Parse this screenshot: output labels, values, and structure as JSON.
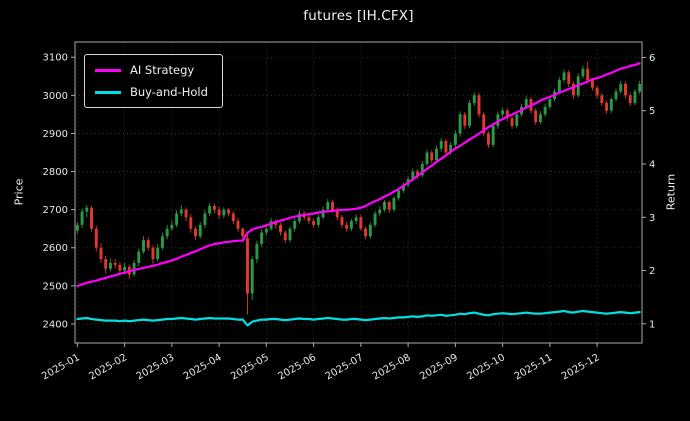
{
  "chart_data": {
    "type": "candlestick+line",
    "title": "futures [IH.CFX]",
    "ylabel_left": "Price",
    "ylabel_right": "Return",
    "background": "#000000",
    "grid": true,
    "legend_position": "upper-left",
    "colors": {
      "up": "#2b9a44",
      "down": "#e03a2e",
      "grid": "#3a3a3a",
      "spine": "#aaaaaa",
      "text": "#e8e8e8",
      "title": "#f2f2f2"
    },
    "price_axis": {
      "min": 2350,
      "max": 3140,
      "ticks": [
        2400,
        2500,
        2600,
        2700,
        2800,
        2900,
        3000,
        3100
      ]
    },
    "return_axis": {
      "min": 0.64,
      "max": 6.29,
      "ticks": [
        1,
        2,
        3,
        4,
        5,
        6
      ]
    },
    "x_ticks": [
      {
        "label": "2025-01",
        "i": 0
      },
      {
        "label": "2025-02",
        "i": 10
      },
      {
        "label": "2025-03",
        "i": 20
      },
      {
        "label": "2025-04",
        "i": 30
      },
      {
        "label": "2025-05",
        "i": 40
      },
      {
        "label": "2025-06",
        "i": 50
      },
      {
        "label": "2025-07",
        "i": 60
      },
      {
        "label": "2025-08",
        "i": 70
      },
      {
        "label": "2025-09",
        "i": 80
      },
      {
        "label": "2025-10",
        "i": 90
      },
      {
        "label": "2025-11",
        "i": 100
      },
      {
        "label": "2025-12",
        "i": 110
      }
    ],
    "legend": [
      {
        "name": "AI Strategy",
        "color": "#ff00ff"
      },
      {
        "name": "Buy-and-Hold",
        "color": "#00e0e0"
      }
    ],
    "candles": [
      [
        2645,
        2668,
        2638,
        2660
      ],
      [
        2660,
        2703,
        2652,
        2695
      ],
      [
        2695,
        2712,
        2680,
        2705
      ],
      [
        2705,
        2710,
        2642,
        2650
      ],
      [
        2650,
        2658,
        2590,
        2600
      ],
      [
        2600,
        2612,
        2560,
        2570
      ],
      [
        2570,
        2578,
        2532,
        2545
      ],
      [
        2545,
        2572,
        2538,
        2560
      ],
      [
        2560,
        2570,
        2545,
        2555
      ],
      [
        2555,
        2562,
        2528,
        2540
      ],
      [
        2540,
        2560,
        2530,
        2550
      ],
      [
        2550,
        2556,
        2518,
        2530
      ],
      [
        2530,
        2568,
        2524,
        2560
      ],
      [
        2560,
        2598,
        2552,
        2590
      ],
      [
        2590,
        2630,
        2584,
        2620
      ],
      [
        2620,
        2628,
        2592,
        2600
      ],
      [
        2600,
        2606,
        2558,
        2570
      ],
      [
        2570,
        2610,
        2564,
        2600
      ],
      [
        2600,
        2640,
        2594,
        2630
      ],
      [
        2630,
        2660,
        2622,
        2650
      ],
      [
        2650,
        2672,
        2644,
        2660
      ],
      [
        2660,
        2698,
        2654,
        2690
      ],
      [
        2690,
        2712,
        2682,
        2700
      ],
      [
        2700,
        2706,
        2670,
        2680
      ],
      [
        2680,
        2688,
        2640,
        2650
      ],
      [
        2650,
        2656,
        2620,
        2630
      ],
      [
        2630,
        2668,
        2624,
        2660
      ],
      [
        2660,
        2700,
        2652,
        2690
      ],
      [
        2690,
        2718,
        2684,
        2710
      ],
      [
        2710,
        2716,
        2690,
        2700
      ],
      [
        2700,
        2708,
        2676,
        2685
      ],
      [
        2685,
        2706,
        2678,
        2700
      ],
      [
        2700,
        2704,
        2682,
        2690
      ],
      [
        2690,
        2696,
        2662,
        2670
      ],
      [
        2670,
        2678,
        2642,
        2650
      ],
      [
        2650,
        2654,
        2622,
        2630
      ],
      [
        2625,
        2635,
        2425,
        2480
      ],
      [
        2480,
        2578,
        2462,
        2570
      ],
      [
        2570,
        2618,
        2560,
        2610
      ],
      [
        2610,
        2648,
        2602,
        2640
      ],
      [
        2640,
        2658,
        2632,
        2650
      ],
      [
        2650,
        2678,
        2644,
        2670
      ],
      [
        2670,
        2676,
        2650,
        2660
      ],
      [
        2660,
        2666,
        2632,
        2640
      ],
      [
        2640,
        2646,
        2612,
        2620
      ],
      [
        2620,
        2656,
        2614,
        2650
      ],
      [
        2650,
        2678,
        2642,
        2670
      ],
      [
        2670,
        2698,
        2664,
        2690
      ],
      [
        2690,
        2696,
        2672,
        2680
      ],
      [
        2680,
        2686,
        2662,
        2670
      ],
      [
        2670,
        2676,
        2652,
        2660
      ],
      [
        2660,
        2688,
        2654,
        2680
      ],
      [
        2680,
        2708,
        2674,
        2700
      ],
      [
        2700,
        2728,
        2694,
        2720
      ],
      [
        2720,
        2726,
        2692,
        2700
      ],
      [
        2700,
        2706,
        2672,
        2680
      ],
      [
        2680,
        2686,
        2652,
        2660
      ],
      [
        2660,
        2668,
        2642,
        2650
      ],
      [
        2650,
        2676,
        2644,
        2670
      ],
      [
        2670,
        2688,
        2662,
        2680
      ],
      [
        2680,
        2686,
        2644,
        2650
      ],
      [
        2650,
        2656,
        2622,
        2630
      ],
      [
        2630,
        2666,
        2624,
        2660
      ],
      [
        2660,
        2696,
        2654,
        2690
      ],
      [
        2690,
        2708,
        2682,
        2700
      ],
      [
        2700,
        2726,
        2694,
        2720
      ],
      [
        2720,
        2724,
        2692,
        2700
      ],
      [
        2700,
        2736,
        2694,
        2730
      ],
      [
        2730,
        2758,
        2724,
        2750
      ],
      [
        2750,
        2772,
        2744,
        2765
      ],
      [
        2765,
        2788,
        2758,
        2780
      ],
      [
        2780,
        2808,
        2774,
        2800
      ],
      [
        2800,
        2806,
        2782,
        2790
      ],
      [
        2790,
        2828,
        2784,
        2820
      ],
      [
        2820,
        2858,
        2814,
        2850
      ],
      [
        2850,
        2856,
        2822,
        2830
      ],
      [
        2830,
        2868,
        2824,
        2860
      ],
      [
        2860,
        2888,
        2852,
        2880
      ],
      [
        2880,
        2886,
        2842,
        2850
      ],
      [
        2850,
        2878,
        2844,
        2870
      ],
      [
        2870,
        2908,
        2862,
        2900
      ],
      [
        2900,
        2958,
        2892,
        2950
      ],
      [
        2950,
        2956,
        2912,
        2920
      ],
      [
        2920,
        2988,
        2914,
        2980
      ],
      [
        2980,
        3008,
        2972,
        3000
      ],
      [
        3000,
        3006,
        2942,
        2950
      ],
      [
        2950,
        2956,
        2892,
        2900
      ],
      [
        2900,
        2906,
        2862,
        2870
      ],
      [
        2870,
        2928,
        2864,
        2920
      ],
      [
        2920,
        2958,
        2912,
        2950
      ],
      [
        2950,
        2968,
        2942,
        2960
      ],
      [
        2960,
        2966,
        2932,
        2940
      ],
      [
        2940,
        2946,
        2912,
        2920
      ],
      [
        2920,
        2958,
        2914,
        2950
      ],
      [
        2950,
        2978,
        2944,
        2970
      ],
      [
        2970,
        2998,
        2964,
        2990
      ],
      [
        2990,
        2996,
        2952,
        2960
      ],
      [
        2960,
        2966,
        2922,
        2930
      ],
      [
        2930,
        2958,
        2924,
        2950
      ],
      [
        2950,
        2978,
        2944,
        2970
      ],
      [
        2970,
        2998,
        2964,
        2990
      ],
      [
        2990,
        3018,
        2984,
        3010
      ],
      [
        3010,
        3048,
        3004,
        3040
      ],
      [
        3040,
        3068,
        3034,
        3060
      ],
      [
        3060,
        3066,
        3022,
        3030
      ],
      [
        3030,
        3036,
        2992,
        3000
      ],
      [
        3000,
        3058,
        2994,
        3050
      ],
      [
        3050,
        3078,
        3044,
        3070
      ],
      [
        3070,
        3088,
        3034,
        3040
      ],
      [
        3040,
        3046,
        3012,
        3020
      ],
      [
        3020,
        3026,
        2992,
        3000
      ],
      [
        3000,
        3006,
        2972,
        2980
      ],
      [
        2980,
        2986,
        2952,
        2960
      ],
      [
        2960,
        2996,
        2954,
        2990
      ],
      [
        2990,
        3018,
        2984,
        3010
      ],
      [
        3010,
        3038,
        3004,
        3030
      ],
      [
        3030,
        3036,
        2992,
        3000
      ],
      [
        3000,
        3006,
        2972,
        2980
      ],
      [
        2980,
        3016,
        2974,
        3010
      ],
      [
        3010,
        3038,
        3004,
        3030
      ]
    ],
    "series": [
      {
        "name": "AI Strategy",
        "axis": "return",
        "values": [
          1.71,
          1.74,
          1.77,
          1.79,
          1.81,
          1.84,
          1.86,
          1.89,
          1.91,
          1.94,
          1.96,
          1.99,
          2.01,
          2.03,
          2.05,
          2.07,
          2.09,
          2.11,
          2.14,
          2.16,
          2.19,
          2.22,
          2.26,
          2.29,
          2.33,
          2.36,
          2.4,
          2.44,
          2.47,
          2.5,
          2.51,
          2.53,
          2.54,
          2.55,
          2.56,
          2.56,
          2.71,
          2.77,
          2.8,
          2.82,
          2.85,
          2.88,
          2.91,
          2.94,
          2.96,
          2.99,
          3.01,
          3.03,
          3.04,
          3.06,
          3.07,
          3.09,
          3.1,
          3.11,
          3.12,
          3.13,
          3.14,
          3.14,
          3.15,
          3.16,
          3.18,
          3.21,
          3.26,
          3.3,
          3.34,
          3.39,
          3.43,
          3.48,
          3.53,
          3.59,
          3.65,
          3.71,
          3.78,
          3.84,
          3.91,
          3.97,
          4.04,
          4.1,
          4.16,
          4.23,
          4.29,
          4.34,
          4.4,
          4.46,
          4.51,
          4.57,
          4.63,
          4.69,
          4.74,
          4.8,
          4.84,
          4.89,
          4.93,
          4.97,
          5.01,
          5.06,
          5.1,
          5.14,
          5.19,
          5.23,
          5.26,
          5.3,
          5.34,
          5.37,
          5.41,
          5.44,
          5.48,
          5.51,
          5.55,
          5.59,
          5.61,
          5.64,
          5.68,
          5.71,
          5.75,
          5.79,
          5.81,
          5.84,
          5.86,
          5.89
        ]
      },
      {
        "name": "Buy-and-Hold",
        "axis": "return",
        "values": [
          1.09,
          1.1,
          1.11,
          1.09,
          1.08,
          1.07,
          1.06,
          1.06,
          1.06,
          1.05,
          1.06,
          1.05,
          1.06,
          1.07,
          1.08,
          1.07,
          1.06,
          1.07,
          1.08,
          1.09,
          1.09,
          1.1,
          1.11,
          1.1,
          1.09,
          1.08,
          1.09,
          1.1,
          1.11,
          1.1,
          1.1,
          1.1,
          1.1,
          1.09,
          1.08,
          1.08,
          0.97,
          1.04,
          1.06,
          1.08,
          1.08,
          1.09,
          1.09,
          1.08,
          1.07,
          1.08,
          1.09,
          1.1,
          1.09,
          1.09,
          1.08,
          1.09,
          1.1,
          1.11,
          1.1,
          1.09,
          1.08,
          1.08,
          1.09,
          1.09,
          1.08,
          1.07,
          1.08,
          1.09,
          1.1,
          1.11,
          1.1,
          1.11,
          1.12,
          1.12,
          1.13,
          1.14,
          1.13,
          1.14,
          1.16,
          1.15,
          1.16,
          1.17,
          1.15,
          1.16,
          1.17,
          1.19,
          1.18,
          1.2,
          1.21,
          1.19,
          1.17,
          1.16,
          1.18,
          1.19,
          1.2,
          1.19,
          1.18,
          1.19,
          1.2,
          1.21,
          1.2,
          1.19,
          1.19,
          1.2,
          1.21,
          1.22,
          1.23,
          1.24,
          1.22,
          1.21,
          1.23,
          1.24,
          1.23,
          1.22,
          1.21,
          1.2,
          1.19,
          1.2,
          1.21,
          1.22,
          1.21,
          1.2,
          1.21,
          1.22
        ]
      }
    ]
  }
}
